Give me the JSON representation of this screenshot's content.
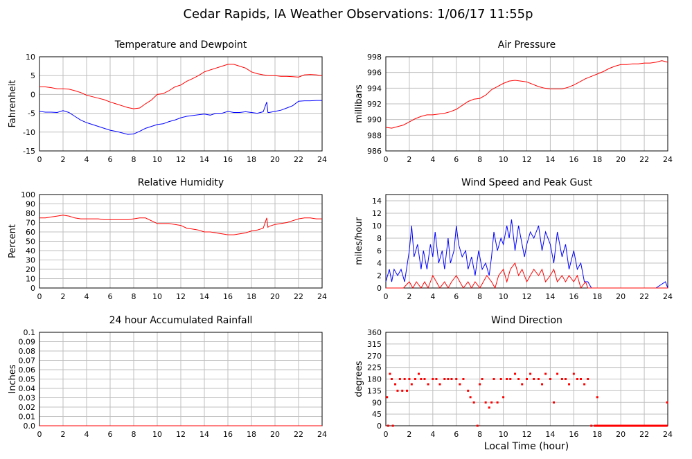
{
  "page_title": "Cedar Rapids, IA Weather Observations: 1/06/17 11:55p",
  "x_axis_title": "Local Time (hour)",
  "x_ticks": [
    "0",
    "2",
    "4",
    "6",
    "8",
    "10",
    "12",
    "14",
    "16",
    "18",
    "20",
    "22",
    "24"
  ],
  "colors": {
    "primary_series": "#ff0000",
    "secondary_series": "#0000ff",
    "grid": "#bfbfbf",
    "frame": "#000000"
  },
  "chart_data": [
    {
      "id": "temperature",
      "type": "line",
      "title": "Temperature and Dewpoint",
      "ylabel": "Fahrenheit",
      "ylim": [
        -15,
        10
      ],
      "y_ticks": [
        "-15",
        "-10",
        "-5",
        "0",
        "5",
        "10"
      ],
      "xlim": [
        0,
        24
      ],
      "grid": true,
      "series": [
        {
          "color": "#ff0000",
          "x": [
            0,
            0.5,
            1,
            1.5,
            2,
            2.5,
            3,
            3.5,
            4,
            4.5,
            5,
            5.5,
            6,
            6.5,
            7,
            7.5,
            8,
            8.5,
            9,
            9.5,
            10,
            10.5,
            11,
            11.5,
            12,
            12.5,
            13,
            13.5,
            14,
            14.5,
            15,
            15.5,
            16,
            16.5,
            17,
            17.5,
            18,
            18.5,
            19,
            19.5,
            20,
            20.5,
            21,
            21.5,
            22,
            22.5,
            23,
            23.5,
            24
          ],
          "y": [
            2,
            2,
            1.8,
            1.5,
            1.5,
            1.4,
            1,
            0.5,
            -0.2,
            -0.6,
            -1,
            -1.4,
            -2,
            -2.5,
            -3,
            -3.5,
            -3.8,
            -3.6,
            -2.5,
            -1.5,
            0,
            0.2,
            1,
            2,
            2.5,
            3.5,
            4.2,
            5,
            6,
            6.5,
            7,
            7.5,
            8,
            8,
            7.5,
            7,
            6,
            5.5,
            5.2,
            5,
            5,
            4.8,
            4.8,
            4.7,
            4.6,
            5.2,
            5.3,
            5.2,
            5
          ]
        },
        {
          "color": "#0000ff",
          "x": [
            0,
            0.5,
            1,
            1.5,
            2,
            2.5,
            3,
            3.5,
            4,
            4.5,
            5,
            5.5,
            6,
            6.5,
            7,
            7.5,
            8,
            8.5,
            9,
            9.5,
            10,
            10.5,
            11,
            11.5,
            12,
            12.5,
            13,
            13.5,
            14,
            14.5,
            15,
            15.5,
            16,
            16.5,
            17,
            17.5,
            18,
            18.5,
            19,
            19.3,
            19.4,
            19.5,
            20,
            20.5,
            21,
            21.5,
            22,
            22.5,
            23,
            23.5,
            24
          ],
          "y": [
            -4.5,
            -4.7,
            -4.7,
            -4.8,
            -4.3,
            -4.8,
            -5.8,
            -6.8,
            -7.5,
            -8,
            -8.5,
            -9,
            -9.5,
            -9.8,
            -10.2,
            -10.6,
            -10.5,
            -9.8,
            -9,
            -8.5,
            -8,
            -7.8,
            -7.2,
            -6.8,
            -6.2,
            -5.8,
            -5.6,
            -5.4,
            -5.2,
            -5.5,
            -5,
            -5,
            -4.5,
            -4.8,
            -4.8,
            -4.6,
            -4.8,
            -5,
            -4.6,
            -2,
            -4.8,
            -4.8,
            -4.5,
            -4.2,
            -3.6,
            -3,
            -1.8,
            -1.7,
            -1.7,
            -1.6,
            -1.6
          ]
        }
      ]
    },
    {
      "id": "pressure",
      "type": "line",
      "title": "Air Pressure",
      "ylabel": "millibars",
      "ylim": [
        986,
        998
      ],
      "y_ticks": [
        "986",
        "988",
        "990",
        "992",
        "994",
        "996",
        "998"
      ],
      "xlim": [
        0,
        24
      ],
      "grid": true,
      "series": [
        {
          "color": "#ff0000",
          "x": [
            0,
            0.5,
            1,
            1.5,
            2,
            2.5,
            3,
            3.5,
            4,
            4.5,
            5,
            5.5,
            6,
            6.5,
            7,
            7.5,
            8,
            8.5,
            9,
            9.5,
            10,
            10.5,
            11,
            11.5,
            12,
            12.5,
            13,
            13.5,
            14,
            14.5,
            15,
            15.5,
            16,
            16.5,
            17,
            17.5,
            18,
            18.5,
            19,
            19.5,
            20,
            20.5,
            21,
            21.5,
            22,
            22.5,
            23,
            23.5,
            24
          ],
          "y": [
            989,
            988.9,
            989.1,
            989.3,
            989.7,
            990.1,
            990.4,
            990.6,
            990.6,
            990.7,
            990.8,
            991,
            991.3,
            991.8,
            992.3,
            992.6,
            992.7,
            993.1,
            993.8,
            994.2,
            994.6,
            994.9,
            995,
            994.9,
            994.8,
            994.5,
            994.2,
            994,
            993.9,
            993.9,
            993.9,
            994.1,
            994.4,
            994.8,
            995.2,
            995.5,
            995.8,
            996.1,
            996.5,
            996.8,
            997,
            997,
            997.1,
            997.1,
            997.2,
            997.2,
            997.3,
            997.5,
            997.3
          ]
        }
      ]
    },
    {
      "id": "humidity",
      "type": "line",
      "title": "Relative Humidity",
      "ylabel": "Percent",
      "ylim": [
        0,
        100
      ],
      "y_ticks": [
        "0",
        "10",
        "20",
        "30",
        "40",
        "50",
        "60",
        "70",
        "80",
        "90",
        "100"
      ],
      "xlim": [
        0,
        24
      ],
      "grid": true,
      "series": [
        {
          "color": "#ff0000",
          "x": [
            0,
            0.5,
            1,
            1.5,
            2,
            2.5,
            3,
            3.5,
            4,
            4.5,
            5,
            5.5,
            6,
            6.5,
            7,
            7.5,
            8,
            8.5,
            9,
            9.5,
            10,
            10.5,
            11,
            11.5,
            12,
            12.5,
            13,
            13.5,
            14,
            14.5,
            15,
            15.5,
            16,
            16.5,
            17,
            17.5,
            18,
            18.5,
            19,
            19.3,
            19.4,
            19.5,
            20,
            20.5,
            21,
            21.5,
            22,
            22.5,
            23,
            23.5,
            24
          ],
          "y": [
            75,
            75,
            76,
            77,
            78,
            77,
            75,
            74,
            74,
            74,
            74,
            73,
            73,
            73,
            73,
            73,
            74,
            75,
            75,
            72,
            69,
            69,
            69,
            68,
            67,
            64,
            63,
            62,
            60,
            60,
            59,
            58,
            57,
            57,
            58,
            59,
            61,
            62,
            64,
            75,
            65,
            66,
            68,
            69,
            70,
            72,
            74,
            75,
            75,
            74,
            74
          ]
        }
      ]
    },
    {
      "id": "wind_speed",
      "type": "line",
      "title": "Wind Speed and Peak Gust",
      "ylabel": "miles/hour",
      "ylim": [
        0,
        15
      ],
      "y_ticks": [
        "0",
        "2",
        "4",
        "6",
        "8",
        "10",
        "12",
        "14"
      ],
      "xlim": [
        0,
        24
      ],
      "grid": true,
      "series": [
        {
          "color": "#0000ff",
          "x": [
            0,
            0.3,
            0.5,
            0.7,
            1,
            1.3,
            1.6,
            2,
            2.2,
            2.4,
            2.7,
            3,
            3.2,
            3.5,
            3.8,
            4,
            4.2,
            4.5,
            4.8,
            5,
            5.3,
            5.5,
            5.8,
            6,
            6.2,
            6.5,
            6.8,
            7,
            7.3,
            7.6,
            7.9,
            8.2,
            8.5,
            8.8,
            9,
            9.2,
            9.5,
            9.8,
            10,
            10.3,
            10.5,
            10.7,
            11,
            11.3,
            11.5,
            11.8,
            12,
            12.3,
            12.6,
            13,
            13.3,
            13.6,
            14,
            14.3,
            14.6,
            15,
            15.3,
            15.6,
            16,
            16.3,
            16.6,
            16.9,
            17.2,
            17.5,
            18,
            19,
            20,
            21,
            22,
            23,
            23.8,
            24
          ],
          "y": [
            1,
            3,
            1,
            3,
            2,
            3,
            1,
            6,
            10,
            5,
            7,
            3,
            6,
            3,
            7,
            5,
            9,
            4,
            6,
            3,
            8,
            4,
            6,
            10,
            7,
            5,
            6,
            3,
            5,
            2,
            6,
            3,
            4,
            2,
            5,
            9,
            6,
            8,
            7,
            10,
            8,
            11,
            6,
            10,
            8,
            5,
            7,
            9,
            8,
            10,
            6,
            9,
            7,
            4,
            9,
            5,
            7,
            3,
            6,
            3,
            4,
            1,
            1,
            0,
            0,
            0,
            0,
            0,
            0,
            0,
            1,
            0
          ]
        },
        {
          "color": "#ff0000",
          "x": [
            0,
            0.3,
            0.6,
            1,
            1.5,
            2,
            2.3,
            2.6,
            3,
            3.3,
            3.6,
            4,
            4.3,
            4.6,
            5,
            5.3,
            5.6,
            6,
            6.3,
            6.6,
            7,
            7.3,
            7.6,
            8,
            8.3,
            8.6,
            9,
            9.3,
            9.6,
            10,
            10.3,
            10.6,
            11,
            11.3,
            11.6,
            12,
            12.3,
            12.6,
            13,
            13.3,
            13.6,
            14,
            14.3,
            14.6,
            15,
            15.3,
            15.6,
            16,
            16.3,
            16.6,
            17,
            17.2,
            17.5,
            18,
            19,
            20,
            21,
            22,
            23,
            24
          ],
          "y": [
            0,
            0,
            0,
            0,
            0,
            1,
            0,
            1,
            0,
            1,
            0,
            2,
            1,
            0,
            1,
            0,
            1,
            2,
            1,
            0,
            1,
            0,
            1,
            0,
            1,
            2,
            1,
            0,
            2,
            3,
            1,
            3,
            4,
            2,
            3,
            1,
            2,
            3,
            2,
            3,
            1,
            2,
            3,
            1,
            2,
            1,
            2,
            1,
            2,
            0,
            1,
            0,
            0,
            0,
            0,
            0,
            0,
            0,
            0,
            0
          ]
        }
      ]
    },
    {
      "id": "rainfall",
      "type": "line",
      "title": "24 hour Accumulated Rainfall",
      "ylabel": "Inches",
      "ylim": [
        0,
        0.1
      ],
      "y_ticks": [
        "0.0",
        "0.01",
        "0.02",
        "0.03",
        "0.04",
        "0.05",
        "0.06",
        "0.07",
        "0.08",
        "0.09",
        "0.1"
      ],
      "xlim": [
        0,
        24
      ],
      "grid": true,
      "series": [
        {
          "color": "#ff0000",
          "x": [
            0,
            24
          ],
          "y": [
            0,
            0
          ]
        }
      ]
    },
    {
      "id": "wind_direction",
      "type": "scatter",
      "title": "Wind Direction",
      "ylabel": "degrees",
      "xlabel": "Local Time (hour)",
      "ylim": [
        0,
        360
      ],
      "y_ticks": [
        "0",
        "45",
        "90",
        "135",
        "180",
        "225",
        "270",
        "315",
        "360"
      ],
      "xlim": [
        0,
        24
      ],
      "grid": true,
      "series": [
        {
          "color": "#ff0000",
          "x": [
            0.1,
            0.2,
            0.35,
            0.5,
            0.6,
            0.8,
            1.0,
            1.2,
            1.4,
            1.6,
            1.8,
            2.0,
            2.2,
            2.5,
            2.8,
            3.0,
            3.3,
            3.6,
            4.0,
            4.3,
            4.6,
            5.0,
            5.3,
            5.6,
            6.0,
            6.3,
            6.6,
            7.0,
            7.2,
            7.5,
            7.8,
            8.0,
            8.2,
            8.5,
            8.8,
            9.0,
            9.2,
            9.5,
            9.8,
            10.0,
            10.3,
            10.6,
            11.0,
            11.3,
            11.6,
            12.0,
            12.3,
            12.6,
            13.0,
            13.3,
            13.6,
            14.0,
            14.3,
            14.6,
            15.0,
            15.3,
            15.6,
            16.0,
            16.3,
            16.6,
            16.9,
            17.2,
            17.5,
            17.8,
            18.0,
            18.5,
            19,
            19.5,
            20,
            20.5,
            21,
            21.5,
            22,
            22.5,
            23,
            23.5,
            23.95
          ],
          "y": [
            110,
            0,
            200,
            180,
            0,
            160,
            135,
            180,
            135,
            180,
            135,
            180,
            160,
            180,
            200,
            180,
            180,
            160,
            180,
            180,
            160,
            180,
            180,
            180,
            180,
            160,
            180,
            135,
            110,
            90,
            0,
            160,
            180,
            90,
            70,
            90,
            180,
            90,
            180,
            110,
            180,
            180,
            200,
            180,
            160,
            180,
            200,
            180,
            180,
            160,
            200,
            180,
            90,
            200,
            180,
            180,
            160,
            200,
            180,
            180,
            160,
            180,
            0,
            0,
            110,
            0,
            0,
            0,
            0,
            0,
            0,
            0,
            0,
            0,
            0,
            0,
            90
          ]
        }
      ]
    }
  ]
}
